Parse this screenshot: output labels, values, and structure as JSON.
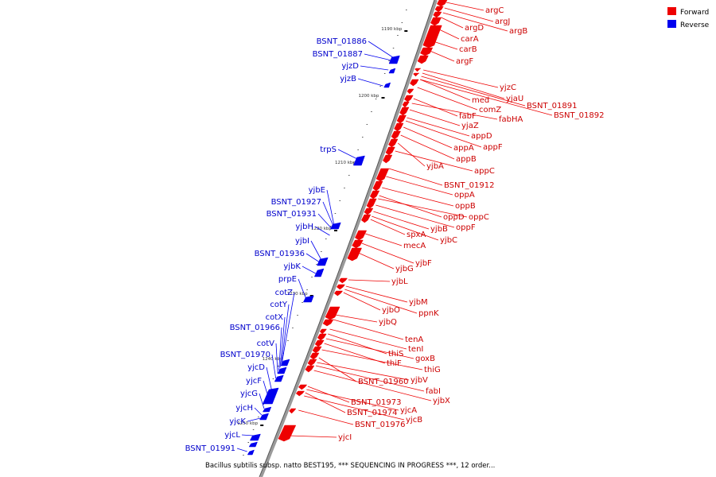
{
  "legend": {
    "forward": "Forward",
    "reverse": "Reverse"
  },
  "caption": "Bacillus subtilis subsp. natto BEST195, *** SEQUENCING IN PROGRESS ***, 12 order...",
  "colors": {
    "forward": "#ee0000",
    "reverse": "#0000ee",
    "backbone": "#888888"
  },
  "ticks": [
    "1190 kbp",
    "1200 kbp",
    "1210 kbp",
    "1220 kbp",
    "1230 kbp",
    "1240 kbp",
    "1250 kbp"
  ],
  "forward_genes": [
    "argC",
    "argJ",
    "argB",
    "argD",
    "carA",
    "carB",
    "argF",
    "yjzC",
    "yjaU",
    "med",
    "BSNT_01891",
    "comZ",
    "BSNT_01892",
    "fabF",
    "fabHA",
    "yjaZ",
    "appD",
    "appA",
    "appF",
    "appB",
    "yjbA",
    "appC",
    "BSNT_01912",
    "oppA",
    "oppB",
    "oppD",
    "oppC",
    "oppF",
    "yjbB",
    "spxA",
    "yjbC",
    "mecA",
    "yjbF",
    "yjbG",
    "yjbL",
    "yjbM",
    "yjbO",
    "ppnK",
    "yjbQ",
    "tenA",
    "tenI",
    "thiS",
    "goxB",
    "thiF",
    "thiG",
    "BSNT_01960",
    "yjbV",
    "fabI",
    "yjbX",
    "BSNT_01973",
    "yjcA",
    "BSNT_01974",
    "yjcB",
    "BSNT_01976",
    "yjcI"
  ],
  "reverse_genes": [
    "BSNT_01886",
    "BSNT_01887",
    "yjzD",
    "yjzB",
    "trpS",
    "yjbE",
    "BSNT_01927",
    "BSNT_01931",
    "yjbH",
    "yjbI",
    "BSNT_01936",
    "yjbK",
    "prpE",
    "cotZ",
    "cotY",
    "cotX",
    "BSNT_01966",
    "cotV",
    "BSNT_01970",
    "yjcD",
    "yjcF",
    "yjcG",
    "yjcH",
    "yjcK",
    "yjcL",
    "BSNT_01991"
  ]
}
